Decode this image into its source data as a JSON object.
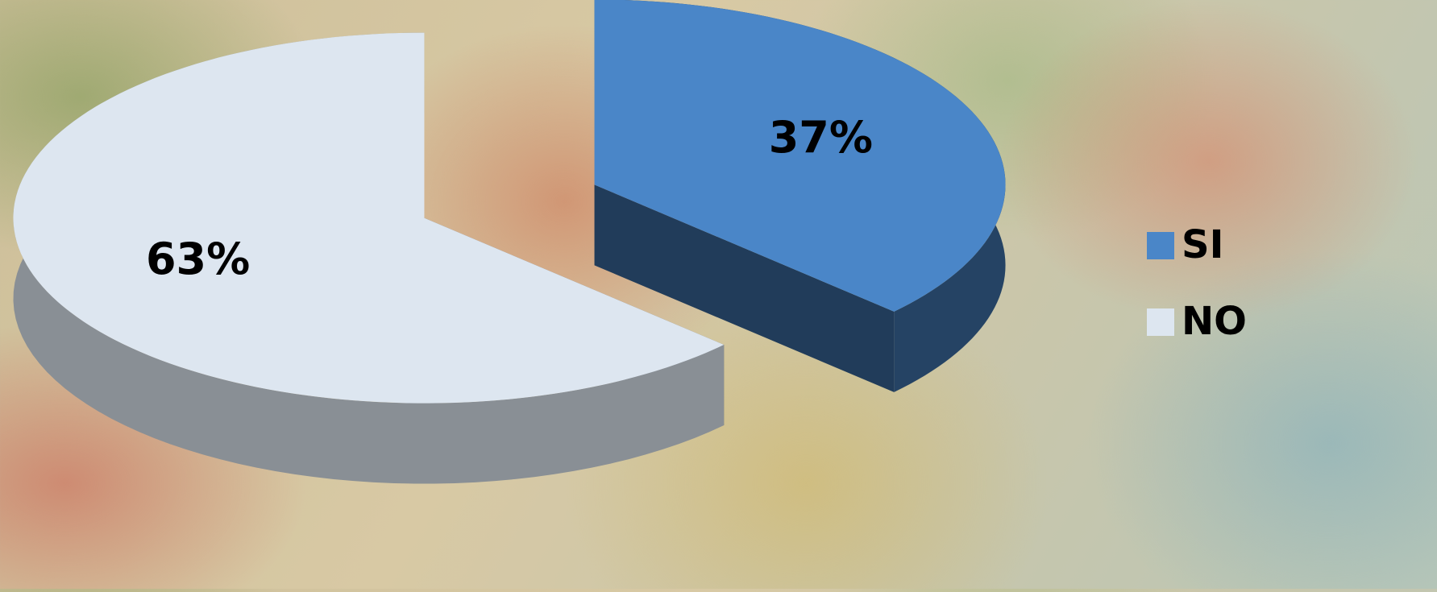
{
  "chart_data": {
    "type": "pie",
    "categories": [
      "SI",
      "NO"
    ],
    "values": [
      37,
      63
    ],
    "value_labels": [
      "37%",
      "63%"
    ],
    "colors": [
      "#4a86c8",
      "#dde6f0"
    ],
    "legend": "right"
  }
}
